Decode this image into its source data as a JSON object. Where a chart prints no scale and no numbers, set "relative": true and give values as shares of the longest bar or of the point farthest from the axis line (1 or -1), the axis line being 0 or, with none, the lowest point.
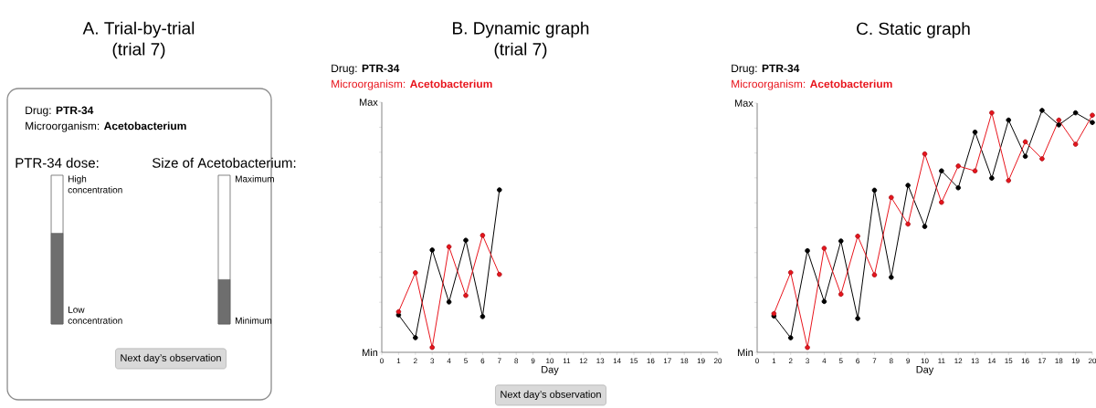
{
  "chart_data": [
    {
      "type": "other",
      "title": "A. Trial-by-trial",
      "subtitle": "(trial 7)",
      "annotations": [
        "Drug: **PTR-34**",
        "Microorganism: **Acetobacterium**",
        "Next day’s observation"
      ]
    },
    {
      "type": "bar",
      "relative": true,
      "categories": [
        null,
        null
      ],
      "values": [
        1,
        0.49
      ],
      "color": "#6e6e6e",
      "annotations": [
        "High concentration",
        "Low concentration",
        "Maximum",
        "Minimum",
        "PTR-34 dose:",
        "Size of Acetobacterium:"
      ]
    },
    {
      "type": "line",
      "relative": true,
      "title": "B. Dynamic graph",
      "subtitle": "(trial 7)",
      "xlabel": "Day",
      "marker": "circle",
      "x": [
        1,
        2,
        3,
        4,
        5,
        6,
        7
      ],
      "xlim": [
        0,
        20
      ],
      "xticks": [
        0,
        1,
        2,
        3,
        4,
        5,
        6,
        7,
        8,
        9,
        10,
        11,
        12,
        13,
        14,
        15,
        16,
        17,
        18,
        19,
        20
      ],
      "series": [
        {
          "name": "Drug: **PTR-34**",
          "color": "#000000",
          "values": [
            0.23,
            0.09,
            0.63,
            0.31,
            0.69,
            0.22,
            1
          ]
        },
        {
          "name": "Microorganism: **Acetobacterium**",
          "color": "#e8141c",
          "values": [
            0.25,
            0.49,
            0.03,
            0.65,
            0.35,
            0.72,
            0.48
          ]
        }
      ],
      "annotations": [
        "Max",
        "Min",
        "Next day’s observation"
      ]
    },
    {
      "type": "line",
      "relative": true,
      "title": "C. Static graph",
      "xlabel": "Day",
      "marker": "circle",
      "x": [
        1,
        2,
        3,
        4,
        5,
        6,
        7,
        8,
        9,
        10,
        11,
        12,
        13,
        14,
        15,
        16,
        17,
        18,
        19,
        20
      ],
      "xlim": [
        0,
        20
      ],
      "xticks": [
        0,
        1,
        2,
        3,
        4,
        5,
        6,
        7,
        8,
        9,
        10,
        11,
        12,
        13,
        14,
        15,
        16,
        17,
        18,
        19,
        20
      ],
      "series": [
        {
          "name": "Drug: **PTR-34**",
          "color": "#000000",
          "values": [
            0.15,
            0.06,
            0.42,
            0.21,
            0.46,
            0.14,
            0.67,
            0.31,
            0.69,
            0.52,
            0.75,
            0.68,
            0.91,
            0.72,
            0.96,
            0.81,
            1,
            0.94,
            0.99,
            0.95
          ]
        },
        {
          "name": "Microorganism: **Acetobacterium**",
          "color": "#e8141c",
          "values": [
            0.16,
            0.33,
            0.02,
            0.43,
            0.24,
            0.48,
            0.32,
            0.64,
            0.53,
            0.82,
            0.62,
            0.77,
            0.75,
            0.99,
            0.71,
            0.87,
            0.8,
            0.96,
            0.86,
            0.98
          ]
        }
      ],
      "annotations": [
        "Max",
        "Min"
      ]
    }
  ]
}
